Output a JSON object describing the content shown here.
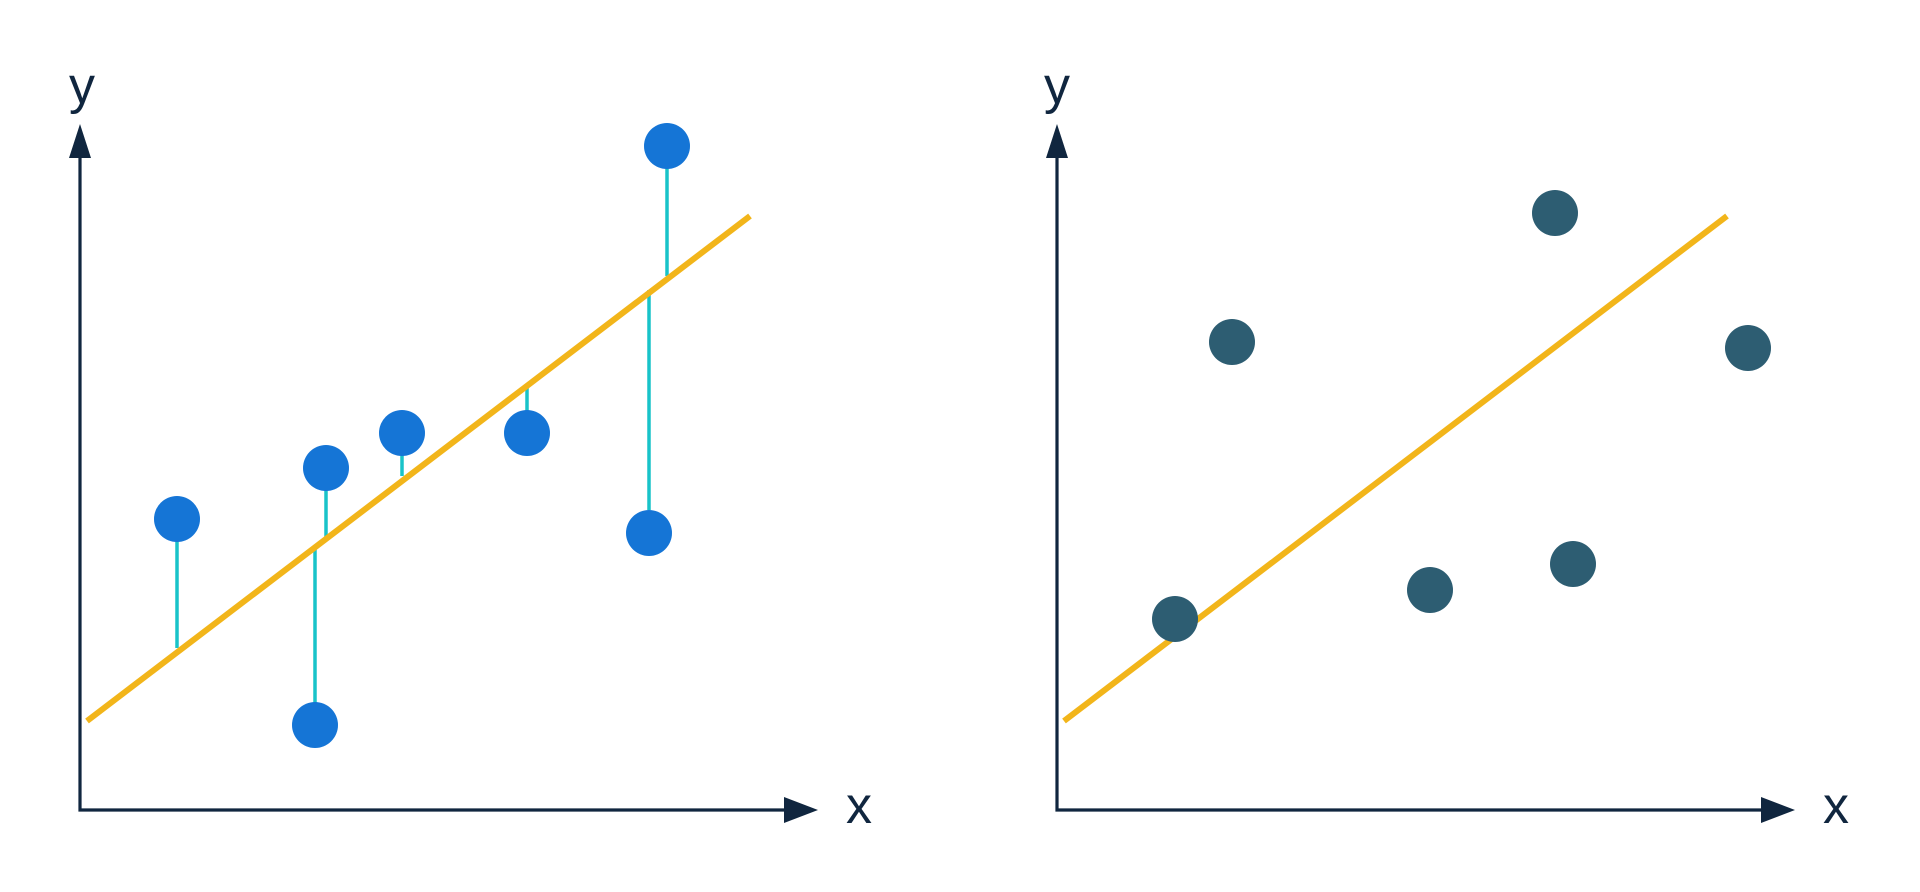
{
  "colors": {
    "axis": "#10263f",
    "fit_line": "#f2b51a",
    "residual": "#18c3c9",
    "points_left": "#1575d6",
    "points_right": "#2d5d72",
    "background": "#ffffff"
  },
  "panels": [
    {
      "name": "left-panel",
      "x_axis_label": "x",
      "y_axis_label": "y",
      "show_residuals": true
    },
    {
      "name": "right-panel",
      "x_axis_label": "x",
      "y_axis_label": "y",
      "show_residuals": false
    }
  ]
}
